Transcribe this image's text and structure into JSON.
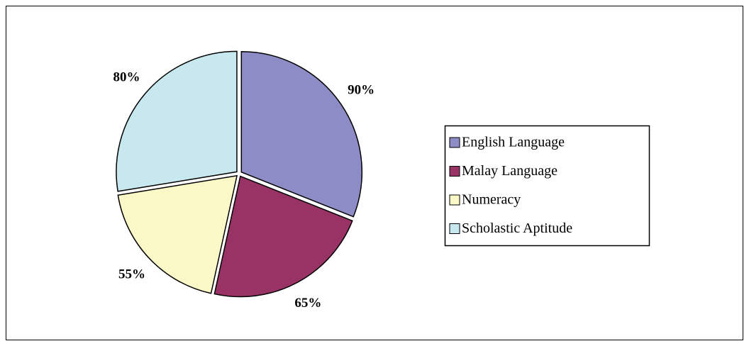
{
  "chart_data": {
    "type": "pie",
    "categories": [
      "English Language",
      "Malay Language",
      "Numeracy",
      "Scholastic Aptitude"
    ],
    "values": [
      90,
      65,
      55,
      80
    ],
    "value_labels": [
      "90%",
      "65%",
      "55%",
      "80%"
    ],
    "colors": [
      "#8e8cc6",
      "#993366",
      "#fbf8c8",
      "#c8e8f0"
    ],
    "legend": "right"
  }
}
